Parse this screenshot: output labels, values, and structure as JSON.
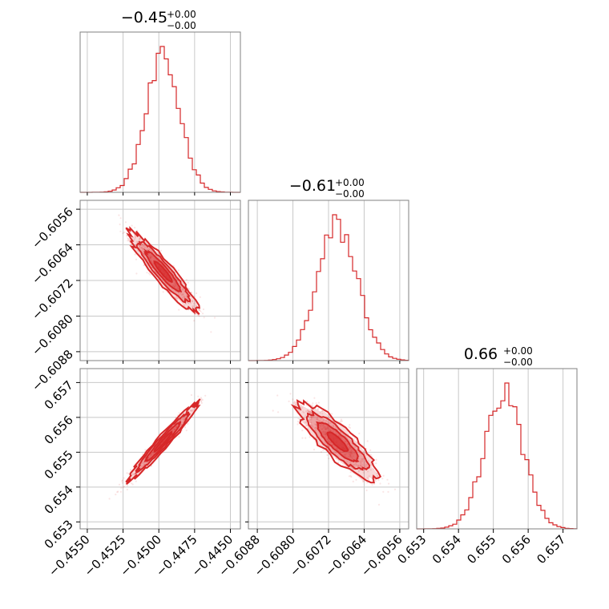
{
  "chart_data": {
    "type": "corner",
    "color": "#d62728",
    "parameters": [
      {
        "title_value": "−0.45",
        "title_plus": "+0.00",
        "title_minus": "−0.00",
        "range": [
          -0.4555,
          -0.4443
        ],
        "mean": -0.4497,
        "sd": 0.0012,
        "ticks": [
          -0.455,
          -0.4525,
          -0.45,
          -0.4475,
          -0.445
        ],
        "tick_labels": [
          "−0.4550",
          "−0.4525",
          "−0.4500",
          "−0.4475",
          "−0.4450"
        ]
      },
      {
        "title_value": "−0.61",
        "title_plus": "+0.00",
        "title_minus": "−0.00",
        "range": [
          -0.609,
          -0.6054
        ],
        "mean": -0.607,
        "sd": 0.00045,
        "ticks": [
          -0.6088,
          -0.608,
          -0.6072,
          -0.6064,
          -0.6056
        ],
        "tick_labels": [
          "−0.6088",
          "−0.6080",
          "−0.6072",
          "−0.6064",
          "−0.6056"
        ]
      },
      {
        "title_value": "0.66",
        "title_plus": "+0.00",
        "title_minus": "−0.00",
        "range": [
          0.6528,
          0.6574
        ],
        "mean": 0.6553,
        "sd": 0.00055,
        "ticks": [
          0.653,
          0.654,
          0.655,
          0.656,
          0.657
        ],
        "tick_labels": [
          "0.653",
          "0.654",
          "0.655",
          "0.656",
          "0.657"
        ]
      }
    ],
    "correlations": {
      "1-0": -0.93,
      "2-0": 0.97,
      "2-1": -0.85
    },
    "grid": true
  }
}
